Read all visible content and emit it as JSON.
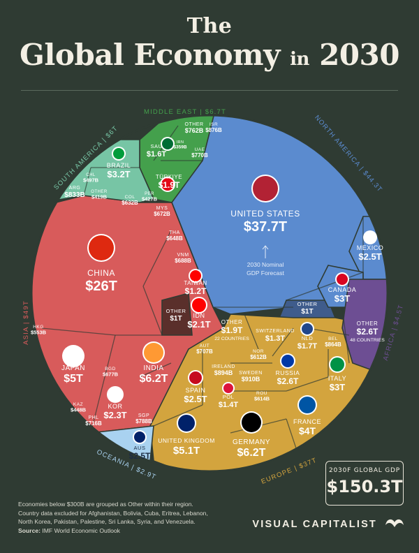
{
  "title": {
    "line1": "The",
    "line2a": "Global Economy",
    "line2b": "in",
    "line2c": "2030"
  },
  "total": {
    "label": "2030F GLOBAL GDP",
    "value": "$150.3T"
  },
  "center_note": {
    "line1": "2030 Nominal",
    "line2": "GDP Forecast"
  },
  "footer": {
    "note1": "Economies below $300B are grouped as Other within their region.",
    "note2": "Country data excluded for Afghanistan, Bolivia, Cuba, Eritrea, Lebanon,",
    "note3": "North Korea, Pakistan, Palestine, Sri Lanka, Syria, and Venezuela.",
    "source_label": "Source:",
    "source_text": "IMF World Economic Outlook"
  },
  "brand": "VISUAL CAPITALIST",
  "colors": {
    "background": "#2f3b33",
    "north_america": "#5b8bcf",
    "asia": "#d85b5b",
    "europe": "#d3a43e",
    "middle_east": "#44a04c",
    "south_america": "#77c5a5",
    "oceania": "#a9d2f0",
    "africa": "#6d4e93",
    "other": "#5a2f2b"
  },
  "regions": [
    {
      "name": "NORTH AMERICA",
      "value": "$44.3T"
    },
    {
      "name": "ASIA",
      "value": "$49T"
    },
    {
      "name": "EUROPE",
      "value": "$37T"
    },
    {
      "name": "MIDDLE EAST",
      "value": "$6.7T"
    },
    {
      "name": "SOUTH AMERICA",
      "value": "$6T"
    },
    {
      "name": "OCEANIA",
      "value": "$2.9T"
    },
    {
      "name": "AFRICA",
      "value": "$4.5T"
    }
  ],
  "chart_data": {
    "type": "voronoi-treemap",
    "title": "The Global Economy in 2030",
    "unit": "USD, 2030 nominal GDP forecast",
    "total": "$150.3T",
    "regions": [
      {
        "name": "North America",
        "value_t": 44.3,
        "countries": [
          {
            "name": "United States",
            "label": "UNITED STATES",
            "value": "$37.7T",
            "value_t": 37.7
          },
          {
            "name": "Mexico",
            "label": "MEXICO",
            "value": "$2.5T",
            "value_t": 2.5
          },
          {
            "name": "Canada",
            "label": "CANADA",
            "value": "$3T",
            "value_t": 3.0
          },
          {
            "name": "Other",
            "label": "OTHER",
            "value": "$1T",
            "value_t": 1.0
          }
        ]
      },
      {
        "name": "Asia",
        "value_t": 49,
        "countries": [
          {
            "name": "China",
            "label": "CHINA",
            "value": "$26T",
            "value_t": 26
          },
          {
            "name": "India",
            "label": "INDIA",
            "value": "$6.2T",
            "value_t": 6.2
          },
          {
            "name": "Japan",
            "label": "JAPAN",
            "value": "$5T",
            "value_t": 5.0
          },
          {
            "name": "South Korea",
            "label": "KOR",
            "value": "$2.3T",
            "value_t": 2.3
          },
          {
            "name": "Indonesia",
            "label": "IDN",
            "value": "$2.1T",
            "value_t": 2.1
          },
          {
            "name": "Taiwan",
            "label": "TAIWAN",
            "value": "$1.2T",
            "value_t": 1.2
          },
          {
            "name": "Other",
            "label": "OTHER",
            "value": "$1T",
            "value_t": 1.0
          },
          {
            "name": "Singapore",
            "label": "SGP",
            "value": "$788B",
            "value_t": 0.788
          },
          {
            "name": "Philippines",
            "label": "PHL",
            "value": "$716B",
            "value_t": 0.716
          },
          {
            "name": "Vietnam",
            "label": "VNM",
            "value": "$688B",
            "value_t": 0.688
          },
          {
            "name": "Malaysia",
            "label": "MYS",
            "value": "$672B",
            "value_t": 0.672
          },
          {
            "name": "Bangladesh",
            "label": "BGD",
            "value": "$677B",
            "value_t": 0.677
          },
          {
            "name": "Thailand",
            "label": "THA",
            "value": "$648B",
            "value_t": 0.648
          },
          {
            "name": "Hong Kong",
            "label": "HKG",
            "value": "$553B",
            "value_t": 0.553
          },
          {
            "name": "Kazakhstan",
            "label": "KAZ",
            "value": "$448B",
            "value_t": 0.448
          }
        ]
      },
      {
        "name": "Europe",
        "value_t": 37,
        "countries": [
          {
            "name": "Germany",
            "label": "GERMANY",
            "value": "$6.2T",
            "value_t": 6.2
          },
          {
            "name": "United Kingdom",
            "label": "UNITED KINGDOM",
            "value": "$5.1T",
            "value_t": 5.1
          },
          {
            "name": "France",
            "label": "FRANCE",
            "value": "$4T",
            "value_t": 4.0
          },
          {
            "name": "Italy",
            "label": "ITALY",
            "value": "$3T",
            "value_t": 3.0
          },
          {
            "name": "Russia",
            "label": "RUSSIA",
            "value": "$2.6T",
            "value_t": 2.6
          },
          {
            "name": "Spain",
            "label": "SPAIN",
            "value": "$2.5T",
            "value_t": 2.5
          },
          {
            "name": "Other",
            "label": "OTHER",
            "value": "$1.9T",
            "value_t": 1.9
          },
          {
            "name": "Netherlands",
            "label": "NLD",
            "value": "$1.7T",
            "value_t": 1.7
          },
          {
            "name": "Poland",
            "label": "POL",
            "value": "$1.4T",
            "value_t": 1.4
          },
          {
            "name": "Switzerland",
            "label": "SWITZERLAND",
            "value": "$1.3T",
            "value_t": 1.3
          },
          {
            "name": "Ireland",
            "label": "IRELAND",
            "value": "$894B",
            "value_t": 0.894
          },
          {
            "name": "Belgium",
            "label": "BEL",
            "value": "$864B",
            "value_t": 0.864
          },
          {
            "name": "Sweden",
            "label": "SWEDEN",
            "value": "$910B",
            "value_t": 0.91
          },
          {
            "name": "Austria",
            "label": "AUT",
            "value": "$707B",
            "value_t": 0.707
          },
          {
            "name": "Norway",
            "label": "NOR",
            "value": "$612B",
            "value_t": 0.612
          },
          {
            "name": "Romania",
            "label": "ROU",
            "value": "$614B",
            "value_t": 0.614
          },
          {
            "name": "Denmark",
            "label": "",
            "value": "$589B",
            "value_t": 0.589
          },
          {
            "name": "Czechia",
            "label": "",
            "value": "$507B",
            "value_t": 0.507
          },
          {
            "name": "Portugal",
            "label": "",
            "value": "$445B",
            "value_t": 0.445
          },
          {
            "name": "Finland",
            "label": "",
            "value": "$388B",
            "value_t": 0.388
          },
          {
            "name": "Greece",
            "label": "",
            "value": "$357B",
            "value_t": 0.357
          },
          {
            "name": "Hungary",
            "label": "",
            "value": "$330B",
            "value_t": 0.33
          }
        ]
      },
      {
        "name": "Middle East",
        "value_t": 6.7,
        "countries": [
          {
            "name": "Türkiye",
            "label": "TÜRKIYE",
            "value": "$1.9T",
            "value_t": 1.9
          },
          {
            "name": "Saudi Arabia",
            "label": "SAU",
            "value": "$1.6T",
            "value_t": 1.6
          },
          {
            "name": "Israel",
            "label": "ISR",
            "value": "$876B",
            "value_t": 0.876
          },
          {
            "name": "UAE",
            "label": "UAE",
            "value": "$770B",
            "value_t": 0.77
          },
          {
            "name": "Other",
            "label": "OTHER",
            "value": "$762B",
            "value_t": 0.762
          },
          {
            "name": "Iraq",
            "label": "",
            "value": "$349B",
            "value_t": 0.349
          },
          {
            "name": "Iran",
            "label": "IRN",
            "value": "$359B",
            "value_t": 0.359
          }
        ]
      },
      {
        "name": "South America",
        "value_t": 6,
        "countries": [
          {
            "name": "Brazil",
            "label": "BRAZIL",
            "value": "$3.2T",
            "value_t": 3.2
          },
          {
            "name": "Argentina",
            "label": "ARG",
            "value": "$833B",
            "value_t": 0.833
          },
          {
            "name": "Colombia",
            "label": "COL",
            "value": "$632B",
            "value_t": 0.632
          },
          {
            "name": "Chile",
            "label": "CHL",
            "value": "$497B",
            "value_t": 0.497
          },
          {
            "name": "Peru",
            "label": "PER",
            "value": "$427B",
            "value_t": 0.427
          },
          {
            "name": "Other",
            "label": "OTHER",
            "value": "$419B",
            "value_t": 0.419
          }
        ]
      },
      {
        "name": "Oceania",
        "value_t": 2.9,
        "countries": [
          {
            "name": "Australia",
            "label": "AUS",
            "value": "$2.5T",
            "value_t": 2.5
          },
          {
            "name": "New Zealand",
            "label": "",
            "value": "$327B",
            "value_t": 0.327
          }
        ]
      },
      {
        "name": "Africa",
        "value_t": 4.5,
        "countries": [
          {
            "name": "Other",
            "label": "OTHER",
            "value": "$2.6T",
            "value_t": 2.6,
            "note": "48 COUNTRIES"
          },
          {
            "name": "Nigeria",
            "label": "",
            "value": "$611B",
            "value_t": 0.611
          },
          {
            "name": "South Africa",
            "label": "",
            "value": "$555B",
            "value_t": 0.555
          },
          {
            "name": "Egypt",
            "label": "",
            "value": "$485B",
            "value_t": 0.485
          },
          {
            "name": "Algeria",
            "label": "",
            "value": "$325B",
            "value_t": 0.325
          }
        ]
      }
    ],
    "other_europe_note": "22 COUNTRIES"
  }
}
